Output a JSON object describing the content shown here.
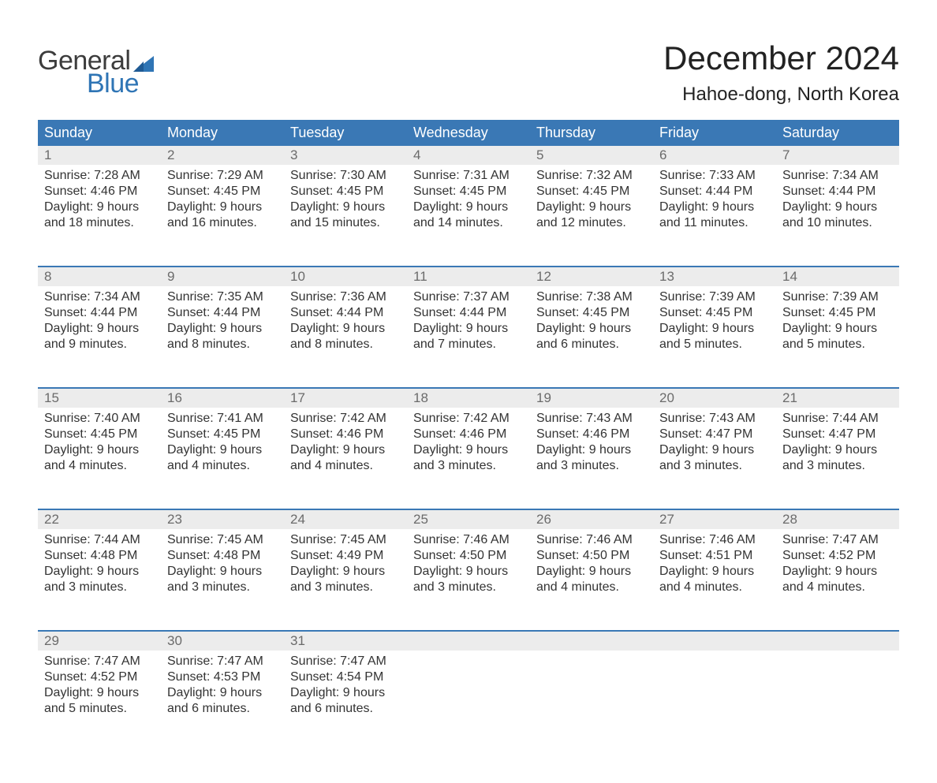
{
  "brand": {
    "word1": "General",
    "word2": "Blue"
  },
  "title": {
    "month": "December 2024",
    "location": "Hahoe-dong, North Korea"
  },
  "colors": {
    "header_bg": "#3a78b5",
    "header_text": "#ffffff",
    "daynum_bg": "#ececec",
    "daynum_text": "#6b6b6b",
    "body_text": "#333333",
    "week_divider": "#3a78b5",
    "brand_blue": "#2f75b5",
    "brand_gray": "#3c3c3c",
    "page_bg": "#ffffff"
  },
  "calendar": {
    "columns": [
      "Sunday",
      "Monday",
      "Tuesday",
      "Wednesday",
      "Thursday",
      "Friday",
      "Saturday"
    ],
    "weeks": [
      [
        {
          "num": "1",
          "sunrise": "Sunrise: 7:28 AM",
          "sunset": "Sunset: 4:46 PM",
          "day1": "Daylight: 9 hours",
          "day2": "and 18 minutes."
        },
        {
          "num": "2",
          "sunrise": "Sunrise: 7:29 AM",
          "sunset": "Sunset: 4:45 PM",
          "day1": "Daylight: 9 hours",
          "day2": "and 16 minutes."
        },
        {
          "num": "3",
          "sunrise": "Sunrise: 7:30 AM",
          "sunset": "Sunset: 4:45 PM",
          "day1": "Daylight: 9 hours",
          "day2": "and 15 minutes."
        },
        {
          "num": "4",
          "sunrise": "Sunrise: 7:31 AM",
          "sunset": "Sunset: 4:45 PM",
          "day1": "Daylight: 9 hours",
          "day2": "and 14 minutes."
        },
        {
          "num": "5",
          "sunrise": "Sunrise: 7:32 AM",
          "sunset": "Sunset: 4:45 PM",
          "day1": "Daylight: 9 hours",
          "day2": "and 12 minutes."
        },
        {
          "num": "6",
          "sunrise": "Sunrise: 7:33 AM",
          "sunset": "Sunset: 4:44 PM",
          "day1": "Daylight: 9 hours",
          "day2": "and 11 minutes."
        },
        {
          "num": "7",
          "sunrise": "Sunrise: 7:34 AM",
          "sunset": "Sunset: 4:44 PM",
          "day1": "Daylight: 9 hours",
          "day2": "and 10 minutes."
        }
      ],
      [
        {
          "num": "8",
          "sunrise": "Sunrise: 7:34 AM",
          "sunset": "Sunset: 4:44 PM",
          "day1": "Daylight: 9 hours",
          "day2": "and 9 minutes."
        },
        {
          "num": "9",
          "sunrise": "Sunrise: 7:35 AM",
          "sunset": "Sunset: 4:44 PM",
          "day1": "Daylight: 9 hours",
          "day2": "and 8 minutes."
        },
        {
          "num": "10",
          "sunrise": "Sunrise: 7:36 AM",
          "sunset": "Sunset: 4:44 PM",
          "day1": "Daylight: 9 hours",
          "day2": "and 8 minutes."
        },
        {
          "num": "11",
          "sunrise": "Sunrise: 7:37 AM",
          "sunset": "Sunset: 4:44 PM",
          "day1": "Daylight: 9 hours",
          "day2": "and 7 minutes."
        },
        {
          "num": "12",
          "sunrise": "Sunrise: 7:38 AM",
          "sunset": "Sunset: 4:45 PM",
          "day1": "Daylight: 9 hours",
          "day2": "and 6 minutes."
        },
        {
          "num": "13",
          "sunrise": "Sunrise: 7:39 AM",
          "sunset": "Sunset: 4:45 PM",
          "day1": "Daylight: 9 hours",
          "day2": "and 5 minutes."
        },
        {
          "num": "14",
          "sunrise": "Sunrise: 7:39 AM",
          "sunset": "Sunset: 4:45 PM",
          "day1": "Daylight: 9 hours",
          "day2": "and 5 minutes."
        }
      ],
      [
        {
          "num": "15",
          "sunrise": "Sunrise: 7:40 AM",
          "sunset": "Sunset: 4:45 PM",
          "day1": "Daylight: 9 hours",
          "day2": "and 4 minutes."
        },
        {
          "num": "16",
          "sunrise": "Sunrise: 7:41 AM",
          "sunset": "Sunset: 4:45 PM",
          "day1": "Daylight: 9 hours",
          "day2": "and 4 minutes."
        },
        {
          "num": "17",
          "sunrise": "Sunrise: 7:42 AM",
          "sunset": "Sunset: 4:46 PM",
          "day1": "Daylight: 9 hours",
          "day2": "and 4 minutes."
        },
        {
          "num": "18",
          "sunrise": "Sunrise: 7:42 AM",
          "sunset": "Sunset: 4:46 PM",
          "day1": "Daylight: 9 hours",
          "day2": "and 3 minutes."
        },
        {
          "num": "19",
          "sunrise": "Sunrise: 7:43 AM",
          "sunset": "Sunset: 4:46 PM",
          "day1": "Daylight: 9 hours",
          "day2": "and 3 minutes."
        },
        {
          "num": "20",
          "sunrise": "Sunrise: 7:43 AM",
          "sunset": "Sunset: 4:47 PM",
          "day1": "Daylight: 9 hours",
          "day2": "and 3 minutes."
        },
        {
          "num": "21",
          "sunrise": "Sunrise: 7:44 AM",
          "sunset": "Sunset: 4:47 PM",
          "day1": "Daylight: 9 hours",
          "day2": "and 3 minutes."
        }
      ],
      [
        {
          "num": "22",
          "sunrise": "Sunrise: 7:44 AM",
          "sunset": "Sunset: 4:48 PM",
          "day1": "Daylight: 9 hours",
          "day2": "and 3 minutes."
        },
        {
          "num": "23",
          "sunrise": "Sunrise: 7:45 AM",
          "sunset": "Sunset: 4:48 PM",
          "day1": "Daylight: 9 hours",
          "day2": "and 3 minutes."
        },
        {
          "num": "24",
          "sunrise": "Sunrise: 7:45 AM",
          "sunset": "Sunset: 4:49 PM",
          "day1": "Daylight: 9 hours",
          "day2": "and 3 minutes."
        },
        {
          "num": "25",
          "sunrise": "Sunrise: 7:46 AM",
          "sunset": "Sunset: 4:50 PM",
          "day1": "Daylight: 9 hours",
          "day2": "and 3 minutes."
        },
        {
          "num": "26",
          "sunrise": "Sunrise: 7:46 AM",
          "sunset": "Sunset: 4:50 PM",
          "day1": "Daylight: 9 hours",
          "day2": "and 4 minutes."
        },
        {
          "num": "27",
          "sunrise": "Sunrise: 7:46 AM",
          "sunset": "Sunset: 4:51 PM",
          "day1": "Daylight: 9 hours",
          "day2": "and 4 minutes."
        },
        {
          "num": "28",
          "sunrise": "Sunrise: 7:47 AM",
          "sunset": "Sunset: 4:52 PM",
          "day1": "Daylight: 9 hours",
          "day2": "and 4 minutes."
        }
      ],
      [
        {
          "num": "29",
          "sunrise": "Sunrise: 7:47 AM",
          "sunset": "Sunset: 4:52 PM",
          "day1": "Daylight: 9 hours",
          "day2": "and 5 minutes."
        },
        {
          "num": "30",
          "sunrise": "Sunrise: 7:47 AM",
          "sunset": "Sunset: 4:53 PM",
          "day1": "Daylight: 9 hours",
          "day2": "and 6 minutes."
        },
        {
          "num": "31",
          "sunrise": "Sunrise: 7:47 AM",
          "sunset": "Sunset: 4:54 PM",
          "day1": "Daylight: 9 hours",
          "day2": "and 6 minutes."
        },
        null,
        null,
        null,
        null
      ]
    ]
  }
}
